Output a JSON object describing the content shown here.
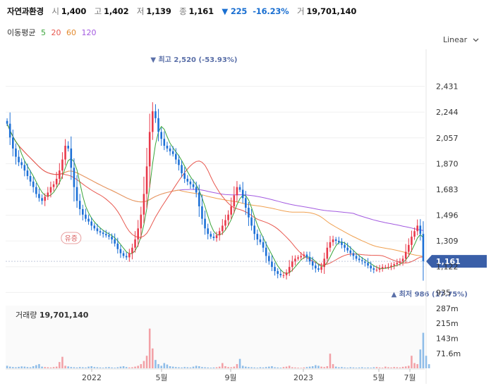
{
  "header": {
    "name": "자연과환경",
    "open_label": "시",
    "open": "1,400",
    "high_label": "고",
    "high": "1,402",
    "low_label": "저",
    "low": "1,139",
    "close_label": "종",
    "close": "1,161",
    "change": "▼ 225",
    "change_pct": "-16.23%",
    "volume_label": "거",
    "volume": "19,701,140"
  },
  "ma_legend": {
    "label": "이동평균",
    "periods": [
      "5",
      "20",
      "60",
      "120"
    ],
    "colors": [
      "#3aa53a",
      "#e8584f",
      "#f0a050",
      "#a35ae0"
    ]
  },
  "scale_selector": {
    "label": "Linear",
    "icon": "chevron-down-icon"
  },
  "colors": {
    "up": "#e8394a",
    "down": "#1b6fd6",
    "vol_up": "#f2a0a6",
    "vol_down": "#8fbde8",
    "price_tag": "#3a5fa8"
  },
  "chart_data": {
    "type": "candlestick",
    "price_axis": {
      "ticks": [
        935,
        1122,
        1309,
        1496,
        1683,
        1870,
        2057,
        2244,
        2431
      ],
      "ylim": [
        860,
        2700
      ],
      "scale": "linear"
    },
    "x_axis_labels": [
      "2022",
      "5월",
      "9월",
      "2023",
      "5월",
      "7월"
    ],
    "current_price": "1,161",
    "annotations": {
      "high": "최고 2,520 (-53.93%)",
      "low": "최저 986 (17.75%)",
      "event": "유증"
    },
    "close_series": [
      2160,
      2060,
      1980,
      1920,
      1880,
      1860,
      1820,
      1780,
      1740,
      1700,
      1650,
      1620,
      1600,
      1630,
      1660,
      1700,
      1720,
      1760,
      1820,
      1900,
      2000,
      1980,
      1840,
      1700,
      1600,
      1540,
      1500,
      1470,
      1450,
      1420,
      1400,
      1380,
      1370,
      1360,
      1350,
      1340,
      1320,
      1290,
      1250,
      1220,
      1200,
      1190,
      1220,
      1260,
      1320,
      1400,
      1500,
      1650,
      1850,
      2100,
      2250,
      2200,
      2100,
      2050,
      2000,
      1980,
      1960,
      1940,
      1900,
      1860,
      1800,
      1760,
      1740,
      1720,
      1700,
      1660,
      1560,
      1470,
      1400,
      1360,
      1340,
      1330,
      1350,
      1380,
      1420,
      1460,
      1500,
      1560,
      1640,
      1700,
      1680,
      1620,
      1550,
      1480,
      1420,
      1360,
      1320,
      1300,
      1260,
      1200,
      1160,
      1120,
      1090,
      1070,
      1060,
      1060,
      1080,
      1120,
      1160,
      1180,
      1190,
      1200,
      1210,
      1190,
      1160,
      1130,
      1110,
      1100,
      1120,
      1180,
      1260,
      1300,
      1320,
      1310,
      1300,
      1280,
      1260,
      1240,
      1220,
      1200,
      1180,
      1170,
      1160,
      1150,
      1130,
      1110,
      1100,
      1100,
      1110,
      1120,
      1120,
      1120,
      1130,
      1140,
      1150,
      1160,
      1180,
      1230,
      1280,
      1340,
      1380,
      1420,
      1360,
      1161
    ],
    "volume_axis": {
      "ticks": [
        "287m",
        "215m",
        "143m",
        "71.6m"
      ]
    },
    "volume_label": "거래량",
    "volume_value": "19,701,140",
    "volume_series": [
      12,
      8,
      6,
      5,
      7,
      9,
      8,
      6,
      5,
      10,
      15,
      20,
      8,
      6,
      5,
      4,
      6,
      8,
      30,
      55,
      12,
      9,
      6,
      5,
      4,
      6,
      5,
      4,
      8,
      10,
      6,
      5,
      4,
      3,
      5,
      6,
      4,
      3,
      5,
      8,
      10,
      6,
      4,
      5,
      8,
      12,
      20,
      35,
      60,
      190,
      95,
      40,
      20,
      12,
      25,
      18,
      10,
      8,
      6,
      5,
      4,
      6,
      5,
      4,
      8,
      12,
      10,
      6,
      5,
      4,
      3,
      4,
      5,
      8,
      25,
      10,
      6,
      5,
      8,
      20,
      45,
      12,
      8,
      6,
      5,
      4,
      3,
      5,
      4,
      6,
      8,
      10,
      5,
      4,
      3,
      6,
      8,
      12,
      5,
      4,
      3,
      2,
      4,
      6,
      8,
      10,
      15,
      12,
      8,
      6,
      10,
      70,
      20,
      8,
      5,
      6,
      4,
      3,
      5,
      4,
      3,
      4,
      5,
      3,
      4,
      3,
      5,
      6,
      4,
      3,
      8,
      5,
      4,
      6,
      5,
      4,
      7,
      9,
      12,
      60,
      25,
      20,
      90,
      170,
      60,
      19.7
    ]
  }
}
